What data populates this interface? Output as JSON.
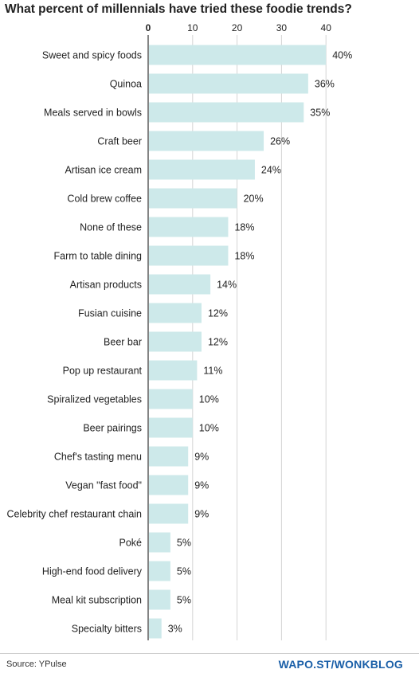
{
  "chart_data": {
    "type": "bar",
    "orientation": "horizontal",
    "title": "What percent of millennials have tried these foodie trends?",
    "categories": [
      "Sweet and spicy foods",
      "Quinoa",
      "Meals served in bowls",
      "Craft beer",
      "Artisan ice cream",
      "Cold brew coffee",
      "None of these",
      "Farm to table dining",
      "Artisan products",
      "Fusian cuisine",
      "Beer bar",
      "Pop up restaurant",
      "Spiralized vegetables",
      "Beer pairings",
      "Chef's tasting menu",
      "Vegan \"fast food\"",
      "Celebrity chef restaurant chain",
      "Poké",
      "High-end food delivery",
      "Meal kit subscription",
      "Specialty bitters"
    ],
    "values": [
      40,
      36,
      35,
      26,
      24,
      20,
      18,
      18,
      14,
      12,
      12,
      11,
      10,
      10,
      9,
      9,
      9,
      5,
      5,
      5,
      3
    ],
    "value_labels": [
      "40%",
      "36%",
      "35%",
      "26%",
      "24%",
      "20%",
      "18%",
      "18%",
      "14%",
      "12%",
      "12%",
      "11%",
      "10%",
      "10%",
      "9%",
      "9%",
      "9%",
      "5%",
      "5%",
      "5%",
      "3%"
    ],
    "xticks": [
      0,
      10,
      20,
      30,
      40
    ],
    "tick_labels": [
      "0",
      "10",
      "20",
      "30",
      "40"
    ],
    "xlim": [
      0,
      40
    ],
    "grid": true,
    "bar_color": "#cde9ea",
    "grid_color": "#d4d4d4",
    "xlabel": "",
    "ylabel": ""
  },
  "footer": {
    "source": "Source: YPulse",
    "credit": "WAPO.ST/WONKBLOG",
    "credit_color": "#1a5fa8"
  }
}
